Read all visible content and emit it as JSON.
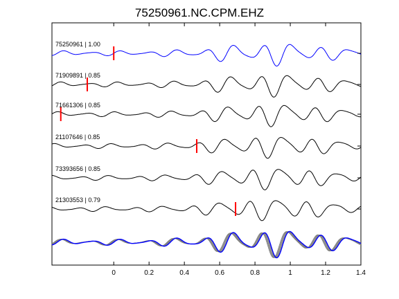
{
  "chart_data": {
    "type": "line",
    "title": "75250961.NC.CPM.EHZ",
    "xlabel": "",
    "ylabel": "",
    "xlim": [
      -0.35,
      1.4
    ],
    "x_ticks": [
      0,
      0.2,
      0.4,
      0.6,
      0.8,
      1,
      1.2,
      1.4
    ],
    "x_tick_labels": [
      "0",
      "0.2",
      "0.4",
      "0.6",
      "0.8",
      "1",
      "1.2",
      "1.4"
    ],
    "grid": false,
    "reference_color": "#0000ff",
    "trace_color": "#000000",
    "stack_color": "#808080",
    "pick_color": "#ff0000",
    "series": [
      {
        "name": "75250961",
        "label": "75250961 | 1.00",
        "pick": 0.0,
        "phase": 0.0
      },
      {
        "name": "71909891",
        "label": "71909891 | 0.85",
        "pick": -0.15,
        "phase": 0.6
      },
      {
        "name": "71661306",
        "label": "71661306 | 0.85",
        "pick": -0.3,
        "phase": 1.2
      },
      {
        "name": "21107646",
        "label": "21107646 | 0.85",
        "pick": 0.47,
        "phase": 1.9
      },
      {
        "name": "73393656",
        "label": "73393656 | 0.85",
        "pick": null,
        "phase": 2.5
      },
      {
        "name": "21303553",
        "label": "21303553 | 0.79",
        "pick": 0.69,
        "phase": 3.1
      }
    ],
    "stack": {
      "name": "stacked overlay",
      "traces": 6
    }
  }
}
